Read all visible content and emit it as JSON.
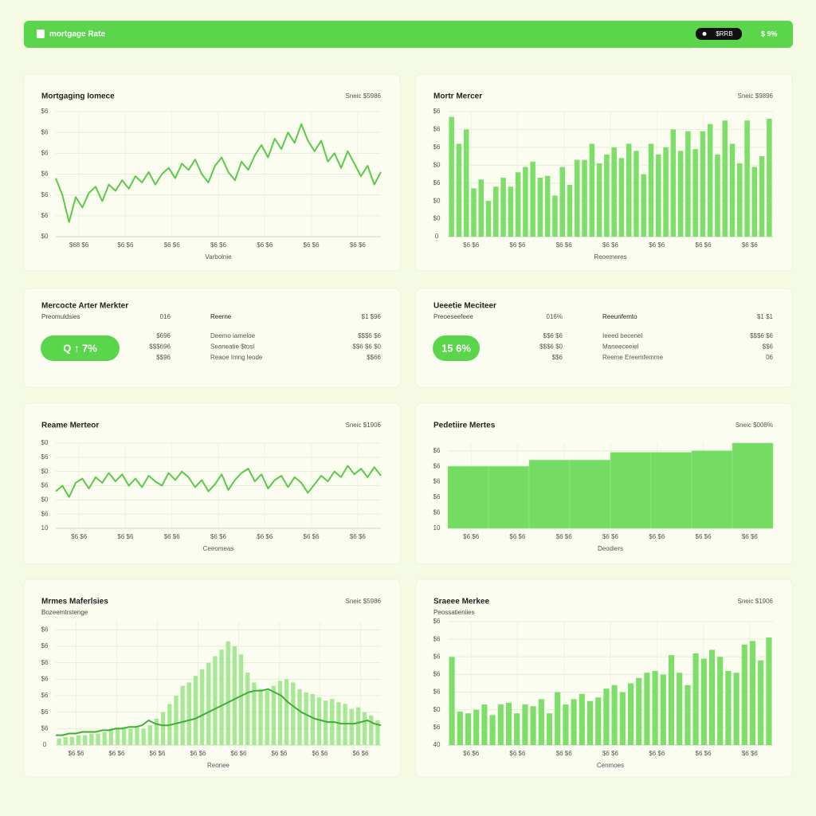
{
  "header": {
    "title": "mortgage Rate",
    "button": "$RRB",
    "rate": "$ 9%"
  },
  "chart_data": [
    {
      "type": "line",
      "title": "Mortgaging Iomece",
      "corner_label": "Sneic $5986",
      "xlabel": "Varbolnie",
      "color": "#5cc94a",
      "grid": true,
      "ylim": [
        0,
        6
      ],
      "yticks": [
        {
          "value": 0,
          "label": "$0"
        },
        {
          "value": 1,
          "label": "$6"
        },
        {
          "value": 2,
          "label": "$6"
        },
        {
          "value": 3,
          "label": "$6"
        },
        {
          "value": 4,
          "label": "$6"
        },
        {
          "value": 5,
          "label": "$6"
        },
        {
          "value": 6,
          "label": "$6"
        }
      ],
      "x_labels": [
        "$68 $6",
        "$6 $6",
        "$6 $6",
        "$6 $6",
        "$6 $6",
        "$6 $6",
        "$6 $6"
      ],
      "values": [
        2.8,
        2.0,
        0.7,
        1.9,
        1.4,
        2.1,
        2.4,
        1.7,
        2.5,
        2.2,
        2.7,
        2.3,
        2.9,
        2.6,
        3.1,
        2.5,
        3.0,
        3.3,
        2.8,
        3.5,
        3.2,
        3.7,
        3.0,
        2.6,
        3.4,
        3.8,
        3.1,
        2.7,
        3.6,
        3.2,
        3.9,
        4.4,
        3.8,
        4.7,
        4.2,
        5.0,
        4.5,
        5.4,
        4.6,
        4.1,
        4.6,
        3.6,
        4.0,
        3.3,
        4.1,
        3.5,
        2.9,
        3.4,
        2.5,
        3.1
      ]
    },
    {
      "type": "bar",
      "title": "Mortr Mercer",
      "corner_label": "Sneic $9896",
      "xlabel": "Reoemeres",
      "color": "#7ddf6a",
      "grid": true,
      "ylim": [
        0,
        7
      ],
      "yticks": [
        0,
        {
          "value": 1,
          "label": "$0"
        },
        {
          "value": 2,
          "label": "$0"
        },
        {
          "value": 3,
          "label": "$6"
        },
        {
          "value": 4,
          "label": "$0"
        },
        {
          "value": 5,
          "label": "$6"
        },
        {
          "value": 6,
          "label": "$6"
        },
        {
          "value": 7,
          "label": "$6"
        }
      ],
      "x_labels": [
        "$6 $6",
        "$6 $6",
        "$6 $6",
        "$6 $6",
        "$6 $6",
        "$6 $6",
        "$6 $6"
      ],
      "values": [
        6.7,
        5.2,
        6.0,
        2.7,
        3.2,
        2.0,
        2.8,
        3.3,
        2.8,
        3.6,
        3.9,
        4.2,
        3.3,
        3.4,
        2.3,
        3.9,
        2.9,
        4.3,
        4.3,
        5.2,
        4.1,
        4.6,
        5.0,
        4.4,
        5.2,
        4.8,
        3.5,
        5.2,
        4.6,
        5.0,
        6.0,
        4.8,
        5.9,
        4.9,
        5.9,
        6.3,
        4.6,
        6.5,
        5.2,
        4.1,
        6.5,
        3.9,
        4.5,
        6.6
      ]
    },
    {
      "type": "line",
      "title": "Reame Merteor",
      "corner_label": "Sneic $1906",
      "xlabel": "Ceeomeas",
      "color": "#5cc94a",
      "grid": true,
      "ylim": [
        0,
        6
      ],
      "yticks": [
        {
          "value": 0,
          "label": "10"
        },
        {
          "value": 1,
          "label": "$6"
        },
        {
          "value": 2,
          "label": "$0"
        },
        {
          "value": 3,
          "label": "$6"
        },
        {
          "value": 4,
          "label": "$0"
        },
        {
          "value": 5,
          "label": "$6"
        },
        {
          "value": 6,
          "label": "$0"
        }
      ],
      "x_labels": [
        "$6 $6",
        "$6 $6",
        "$6 $6",
        "$6 $6",
        "$6 $6",
        "$6 $6",
        "$6 $6"
      ],
      "values": [
        2.6,
        3.0,
        2.2,
        3.2,
        3.5,
        2.8,
        3.6,
        3.2,
        3.9,
        3.3,
        3.8,
        3.0,
        3.5,
        2.9,
        3.7,
        3.3,
        3.0,
        3.9,
        3.4,
        4.0,
        3.6,
        2.9,
        3.4,
        2.6,
        3.1,
        3.8,
        2.7,
        3.4,
        3.9,
        4.2,
        3.3,
        3.8,
        2.8,
        3.4,
        3.7,
        2.9,
        3.6,
        3.2,
        2.5,
        3.1,
        3.7,
        3.3,
        4.0,
        3.6,
        4.4,
        3.8,
        4.2,
        3.6,
        4.3,
        3.7
      ]
    },
    {
      "type": "bar",
      "title": "Pedetiire Mertes",
      "corner_label": "Sneic $008%",
      "xlabel": "Deodiers",
      "color": "#74dc62",
      "grid": true,
      "ylim": [
        0,
        5.5
      ],
      "yticks": [
        {
          "value": 0,
          "label": "10"
        },
        {
          "value": 1,
          "label": "$6"
        },
        {
          "value": 2,
          "label": "$6"
        },
        {
          "value": 3,
          "label": "$6"
        },
        {
          "value": 4,
          "label": "$6"
        },
        {
          "value": 5,
          "label": "$6"
        }
      ],
      "x_labels": [
        "$6 $6",
        "$6 $6",
        "$6 $6",
        "$6 $6",
        "$6 $6",
        "$6 $6",
        "$6 $6"
      ],
      "values": [
        4.0,
        4.0,
        4.4,
        4.4,
        4.9,
        4.9,
        5.0,
        5.5
      ]
    },
    {
      "type": "bar",
      "title": "Mrmes Maferlsies",
      "subtitle": "Bozeemtrstenge",
      "corner_label": "Sneic $5986",
      "xlabel": "Reonee",
      "grid": true,
      "ylim": [
        0,
        7.5
      ],
      "yticks": [
        0,
        {
          "value": 1,
          "label": "$6"
        },
        {
          "value": 2,
          "label": "$6"
        },
        {
          "value": 3,
          "label": "$6"
        },
        {
          "value": 4,
          "label": "$6"
        },
        {
          "value": 5,
          "label": "$6"
        },
        {
          "value": 6,
          "label": "$6"
        },
        {
          "value": 7,
          "label": "$6"
        }
      ],
      "x_labels": [
        "$6 $6",
        "$6 $6",
        "$6 $6",
        "$6 $6",
        "$6 $6",
        "$6 $6",
        "$6 $6",
        "$6 $6"
      ],
      "series": [
        {
          "type": "bar",
          "color": "#a6e896",
          "values": [
            0.4,
            0.5,
            0.5,
            0.6,
            0.6,
            0.7,
            0.7,
            0.8,
            0.9,
            1.0,
            1.1,
            1.0,
            1.1,
            1.0,
            1.2,
            1.6,
            2.0,
            2.5,
            3.0,
            3.6,
            3.8,
            4.2,
            4.6,
            5.0,
            5.4,
            5.8,
            6.3,
            6.0,
            5.5,
            4.4,
            3.8,
            3.4,
            3.3,
            3.6,
            3.9,
            4.0,
            3.8,
            3.4,
            3.2,
            3.1,
            2.9,
            2.7,
            2.8,
            2.6,
            2.5,
            2.2,
            2.3,
            2.0,
            1.8,
            1.5
          ]
        },
        {
          "type": "line",
          "color": "#3fae36",
          "values": [
            0.6,
            0.6,
            0.7,
            0.7,
            0.8,
            0.8,
            0.8,
            0.9,
            0.9,
            1.0,
            1.0,
            1.1,
            1.1,
            1.2,
            1.5,
            1.3,
            1.2,
            1.2,
            1.3,
            1.4,
            1.5,
            1.6,
            1.8,
            2.0,
            2.2,
            2.4,
            2.6,
            2.8,
            3.0,
            3.2,
            3.3,
            3.3,
            3.4,
            3.2,
            3.0,
            2.6,
            2.3,
            2.0,
            1.8,
            1.6,
            1.5,
            1.4,
            1.4,
            1.3,
            1.3,
            1.3,
            1.4,
            1.5,
            1.3,
            1.2
          ]
        }
      ]
    },
    {
      "type": "bar",
      "title": "Sraeee Merkee",
      "subtitle": "Peossatieniies",
      "corner_label": "Sneic $1906",
      "xlabel": "Cenmoes",
      "color": "#7ddf6a",
      "grid": true,
      "ylim": [
        0,
        7
      ],
      "yticks": [
        {
          "value": 0,
          "label": "40"
        },
        {
          "value": 1,
          "label": "$6"
        },
        {
          "value": 2,
          "label": "$0"
        },
        {
          "value": 3,
          "label": "$6"
        },
        {
          "value": 4,
          "label": "$6"
        },
        {
          "value": 5,
          "label": "$6"
        },
        {
          "value": 6,
          "label": "$6"
        },
        {
          "value": 7,
          "label": "$6"
        }
      ],
      "x_labels": [
        "$6 $6",
        "$6 $6",
        "$6 $6",
        "$6 $6",
        "$6 $6",
        "$6 $6",
        "$6 $6"
      ],
      "values": [
        5.0,
        1.9,
        1.8,
        2.0,
        2.3,
        1.7,
        2.3,
        2.4,
        1.8,
        2.3,
        2.2,
        2.6,
        1.8,
        3.0,
        2.3,
        2.6,
        2.9,
        2.5,
        2.7,
        3.2,
        3.4,
        3.0,
        3.5,
        3.8,
        4.1,
        4.2,
        4.0,
        5.1,
        4.1,
        3.4,
        5.2,
        4.9,
        5.4,
        5.0,
        4.2,
        4.1,
        5.7,
        5.9,
        4.8,
        6.1
      ]
    }
  ],
  "stats": [
    {
      "title": "Mercocte Arter Merkter",
      "subtitle": "Preomuldsies",
      "badge": "Q ↑ 7%",
      "col1": {
        "header": "016",
        "rows": [
          "$696",
          "$$$696",
          "$$96"
        ]
      },
      "col2": {
        "header": "Reerne",
        "rows": [
          "Deemo iameloe",
          "Seaneatie $tosl",
          "Reaoe Imng leode"
        ]
      },
      "col3": {
        "header": "$1 $96",
        "rows": [
          "$$$6 $6",
          "$$6 $6 $0",
          "$$66"
        ]
      }
    },
    {
      "title": "Ueeetie Meciteer",
      "subtitle": "Preoeseefeee",
      "badge": "15 6%",
      "col1": {
        "header": "016%",
        "rows": [
          "$$6 $6",
          "$$$6 $0",
          "$$6"
        ]
      },
      "col2": {
        "header": "Reeunfemto",
        "rows": [
          "Ieeed becenel",
          "Maneeceeiel",
          "Reeme Ereemfemme"
        ]
      },
      "col3": {
        "header": "$1 $1",
        "rows": [
          "$$$6 $6",
          "$$6",
          "06"
        ]
      }
    }
  ]
}
